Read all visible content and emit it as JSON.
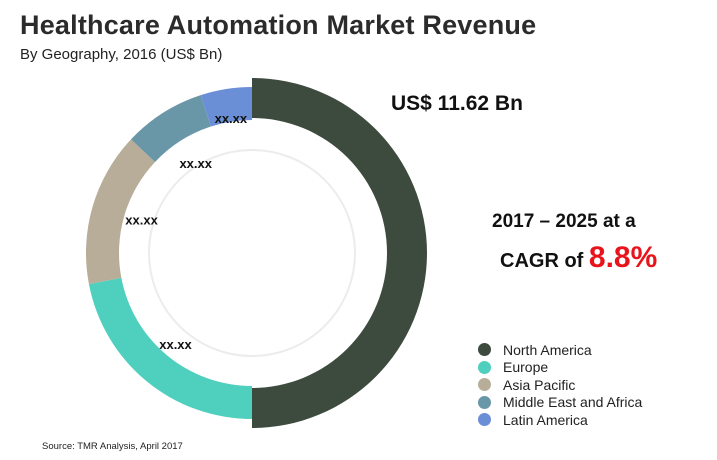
{
  "chart_data": {
    "type": "pie",
    "title": "Healthcare Automation Market Revenue",
    "subtitle": "By Geography, 2016 (US$ Bn)",
    "total_label": "US$ 11.62 Bn",
    "cagr": {
      "line1": "2017 – 2025 at a",
      "line2_prefix": "CAGR of ",
      "value": "8.8%"
    },
    "categories": [
      "North America",
      "Europe",
      "Asia Pacific",
      "Middle East and Africa",
      "Latin America"
    ],
    "values": [
      50,
      22,
      15,
      8,
      5
    ],
    "data_labels": [
      "",
      "xx.xx",
      "xx.xx",
      "xx.xx",
      "xx.xx"
    ],
    "colors": [
      "#3d4a3e",
      "#4fcfbd",
      "#b7ad98",
      "#6a97a8",
      "#6b8fd6"
    ],
    "source": "Source: TMR Analysis, April 2017"
  }
}
